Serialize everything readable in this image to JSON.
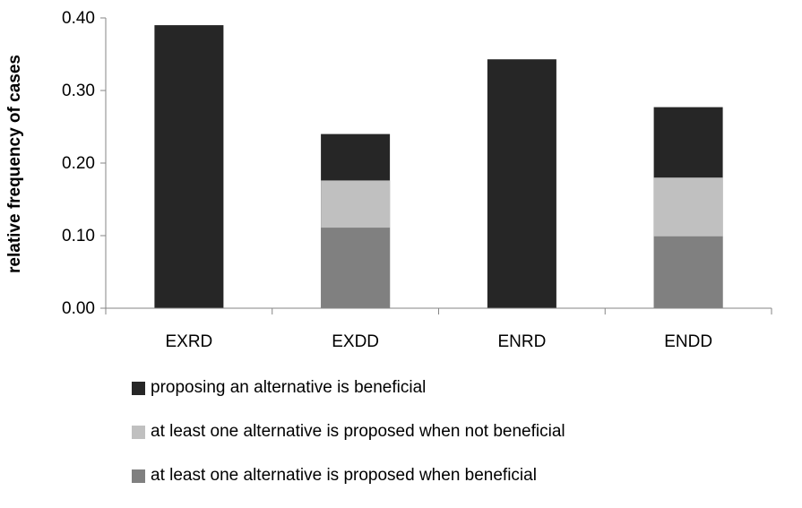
{
  "chart_data": {
    "type": "bar",
    "stacked_overlay": true,
    "categories": [
      "EXRD",
      "EXDD",
      "ENRD",
      "ENDD"
    ],
    "ylabel": "relative frequency of cases",
    "xlabel": "",
    "ylim": [
      0,
      0.4
    ],
    "yticks": [
      "0.00",
      "0.10",
      "0.20",
      "0.30",
      "0.40"
    ],
    "grid": false,
    "legend_position": "bottom",
    "series": [
      {
        "name": "proposing an alternative is beneficial",
        "color": "#262626",
        "values": [
          0.39,
          0.24,
          0.343,
          0.277
        ]
      },
      {
        "name": "at least one alternative is proposed when not beneficial",
        "color": "#c0c0c0",
        "values": [
          null,
          0.176,
          null,
          0.18
        ]
      },
      {
        "name": "at least one alternative is proposed when beneficial",
        "color": "#808080",
        "values": [
          null,
          0.111,
          null,
          0.099
        ]
      }
    ]
  }
}
